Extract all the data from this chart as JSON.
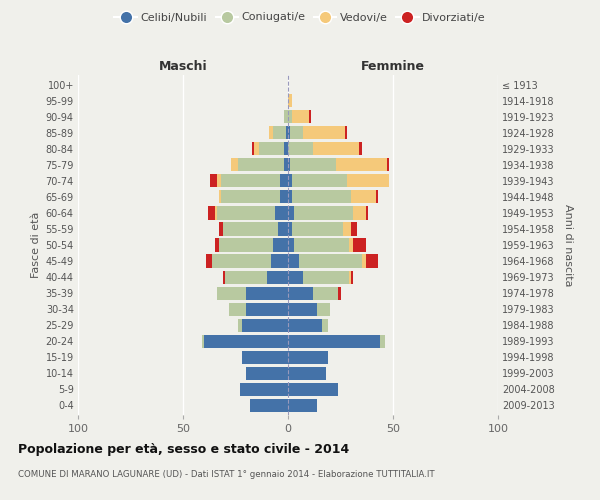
{
  "age_groups": [
    "0-4",
    "5-9",
    "10-14",
    "15-19",
    "20-24",
    "25-29",
    "30-34",
    "35-39",
    "40-44",
    "45-49",
    "50-54",
    "55-59",
    "60-64",
    "65-69",
    "70-74",
    "75-79",
    "80-84",
    "85-89",
    "90-94",
    "95-99",
    "100+"
  ],
  "birth_years": [
    "2009-2013",
    "2004-2008",
    "1999-2003",
    "1994-1998",
    "1989-1993",
    "1984-1988",
    "1979-1983",
    "1974-1978",
    "1969-1973",
    "1964-1968",
    "1959-1963",
    "1954-1958",
    "1949-1953",
    "1944-1948",
    "1939-1943",
    "1934-1938",
    "1929-1933",
    "1924-1928",
    "1919-1923",
    "1914-1918",
    "≤ 1913"
  ],
  "maschi": {
    "celibi": [
      18,
      23,
      20,
      22,
      40,
      22,
      20,
      20,
      10,
      8,
      7,
      5,
      6,
      4,
      4,
      2,
      2,
      1,
      0,
      0,
      0
    ],
    "coniugati": [
      0,
      0,
      0,
      0,
      1,
      2,
      8,
      14,
      20,
      28,
      26,
      26,
      28,
      28,
      28,
      22,
      12,
      6,
      2,
      0,
      0
    ],
    "vedovi": [
      0,
      0,
      0,
      0,
      0,
      0,
      0,
      0,
      0,
      0,
      0,
      0,
      1,
      1,
      2,
      3,
      2,
      2,
      0,
      0,
      0
    ],
    "divorziati": [
      0,
      0,
      0,
      0,
      0,
      0,
      0,
      0,
      1,
      3,
      2,
      2,
      3,
      0,
      3,
      0,
      1,
      0,
      0,
      0,
      0
    ]
  },
  "femmine": {
    "nubili": [
      14,
      24,
      18,
      19,
      44,
      16,
      14,
      12,
      7,
      5,
      3,
      2,
      3,
      2,
      2,
      1,
      0,
      1,
      0,
      0,
      0
    ],
    "coniugate": [
      0,
      0,
      0,
      0,
      2,
      3,
      6,
      12,
      22,
      30,
      26,
      24,
      28,
      28,
      26,
      22,
      12,
      6,
      2,
      0,
      0
    ],
    "vedove": [
      0,
      0,
      0,
      0,
      0,
      0,
      0,
      0,
      1,
      2,
      2,
      4,
      6,
      12,
      20,
      24,
      22,
      20,
      8,
      2,
      0
    ],
    "divorziate": [
      0,
      0,
      0,
      0,
      0,
      0,
      0,
      1,
      1,
      6,
      6,
      3,
      1,
      1,
      0,
      1,
      1,
      1,
      1,
      0,
      0
    ]
  },
  "colors": {
    "celibi": "#4472a8",
    "coniugati": "#b8c9a0",
    "vedovi": "#f5c97a",
    "divorziati": "#cc2222"
  },
  "xlim": 100,
  "title": "Popolazione per età, sesso e stato civile - 2014",
  "subtitle": "COMUNE DI MARANO LAGUNARE (UD) - Dati ISTAT 1° gennaio 2014 - Elaborazione TUTTITALIA.IT",
  "ylabel_left": "Fasce di età",
  "ylabel_right": "Anni di nascita",
  "xlabel_left": "Maschi",
  "xlabel_right": "Femmine",
  "legend_labels": [
    "Celibi/Nubili",
    "Coniugati/e",
    "Vedovi/e",
    "Divorziati/e"
  ],
  "background_color": "#f0f0eb"
}
